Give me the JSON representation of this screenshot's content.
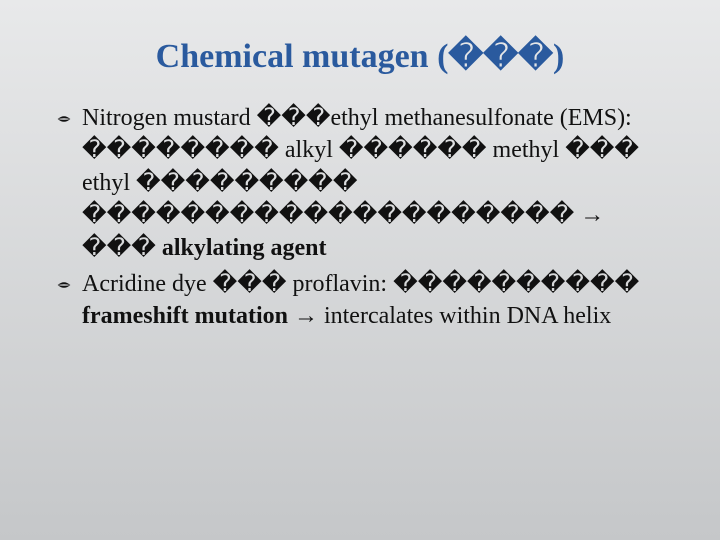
{
  "slide": {
    "background": {
      "top": "#e8e9ea",
      "bottom": "#c5c7c9"
    },
    "title": {
      "text": "Chemical mutagen (���)",
      "color": "#2a5a9e",
      "fontsize": 34,
      "fontweight": "bold"
    },
    "bullets": [
      {
        "runs": [
          {
            "t": "Nitrogen mustard ",
            "b": false
          },
          {
            "t": "���",
            "b": false
          },
          {
            "t": "ethyl methanesulfonate (EMS): ",
            "b": false
          },
          {
            "t": "�������� ",
            "b": false
          },
          {
            "t": "alkyl ",
            "b": false
          },
          {
            "t": "������ ",
            "b": false
          },
          {
            "t": "methyl ",
            "b": false
          },
          {
            "t": "��� ",
            "b": false
          },
          {
            "t": "ethyl ",
            "b": false
          },
          {
            "t": "��������� ",
            "b": false
          },
          {
            "t": "�������������������� ",
            "b": false
          },
          {
            "t": "→",
            "b": true,
            "arrow": true
          },
          {
            "t": " ���",
            "b": false
          },
          {
            "t": " alkylating agent",
            "b": true
          }
        ]
      },
      {
        "runs": [
          {
            "t": "Acridine dye ",
            "b": false
          },
          {
            "t": "��� ",
            "b": false
          },
          {
            "t": "proflavin: ",
            "b": false
          },
          {
            "t": "���������� ",
            "b": false
          },
          {
            "t": "frameshift mutation",
            "b": true
          },
          {
            "t": " ",
            "b": false
          },
          {
            "t": "→",
            "b": false,
            "arrow": true
          },
          {
            "t": " intercalates within DNA helix",
            "b": false
          }
        ]
      }
    ],
    "body_fontsize": 24,
    "body_color": "#111"
  }
}
